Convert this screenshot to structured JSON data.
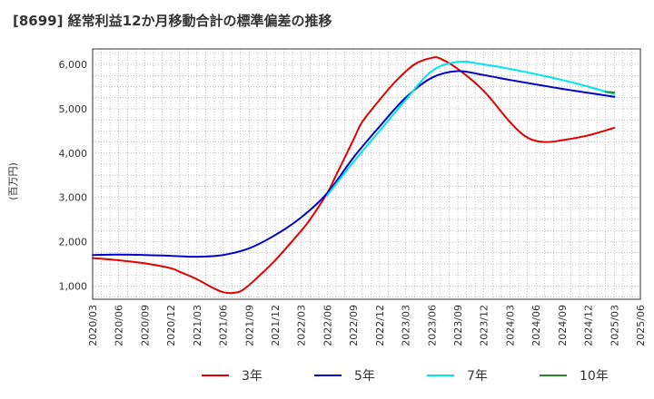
{
  "chart_data": {
    "type": "line",
    "title": "[8699]  経常利益12か月移動合計の標準偏差の推移",
    "ylabel": "(百万円)",
    "ylim": [
      700,
      6350
    ],
    "yticks": [
      1000,
      2000,
      3000,
      4000,
      5000,
      6000
    ],
    "ytick_labels": [
      "1,000",
      "2,000",
      "3,000",
      "4,000",
      "5,000",
      "6,000"
    ],
    "x_start": "2020/03",
    "x_end": "2025/06",
    "x_labels": [
      "2020/03",
      "2020/06",
      "2020/09",
      "2020/12",
      "2021/03",
      "2021/06",
      "2021/09",
      "2021/12",
      "2022/03",
      "2022/06",
      "2022/09",
      "2022/12",
      "2023/03",
      "2023/06",
      "2023/09",
      "2023/12",
      "2024/03",
      "2024/06",
      "2024/09",
      "2024/12",
      "2025/03",
      "2025/06"
    ],
    "grid": true,
    "legend_position": "bottom",
    "series": [
      {
        "name": "3年",
        "color": "#e00000",
        "points": [
          [
            "2020/03",
            1630
          ],
          [
            "2020/06",
            1580
          ],
          [
            "2020/09",
            1510
          ],
          [
            "2020/12",
            1400
          ],
          [
            "2021/01",
            1320
          ],
          [
            "2021/03",
            1150
          ],
          [
            "2021/05",
            940
          ],
          [
            "2021/06",
            860
          ],
          [
            "2021/07",
            840
          ],
          [
            "2021/08",
            880
          ],
          [
            "2021/09",
            1020
          ],
          [
            "2021/10",
            1200
          ],
          [
            "2021/12",
            1580
          ],
          [
            "2022/03",
            2250
          ],
          [
            "2022/04",
            2500
          ],
          [
            "2022/06",
            3100
          ],
          [
            "2022/07",
            3500
          ],
          [
            "2022/09",
            4300
          ],
          [
            "2022/10",
            4700
          ],
          [
            "2022/12",
            5200
          ],
          [
            "2023/02",
            5650
          ],
          [
            "2023/04",
            6000
          ],
          [
            "2023/06",
            6150
          ],
          [
            "2023/07",
            6130
          ],
          [
            "2023/09",
            5900
          ],
          [
            "2023/12",
            5400
          ],
          [
            "2024/03",
            4700
          ],
          [
            "2024/05",
            4350
          ],
          [
            "2024/07",
            4250
          ],
          [
            "2024/09",
            4290
          ],
          [
            "2024/12",
            4400
          ],
          [
            "2025/03",
            4570
          ]
        ]
      },
      {
        "name": "5年",
        "color": "#0000cc",
        "points": [
          [
            "2020/03",
            1700
          ],
          [
            "2020/06",
            1710
          ],
          [
            "2020/09",
            1700
          ],
          [
            "2020/12",
            1680
          ],
          [
            "2021/03",
            1660
          ],
          [
            "2021/06",
            1700
          ],
          [
            "2021/09",
            1850
          ],
          [
            "2021/12",
            2150
          ],
          [
            "2022/03",
            2550
          ],
          [
            "2022/06",
            3100
          ],
          [
            "2022/09",
            3900
          ],
          [
            "2022/12",
            4600
          ],
          [
            "2023/03",
            5250
          ],
          [
            "2023/06",
            5700
          ],
          [
            "2023/09",
            5850
          ],
          [
            "2023/12",
            5760
          ],
          [
            "2024/03",
            5650
          ],
          [
            "2024/06",
            5550
          ],
          [
            "2024/09",
            5450
          ],
          [
            "2024/12",
            5360
          ],
          [
            "2025/03",
            5270
          ]
        ]
      },
      {
        "name": "7年",
        "color": "#00e5ee",
        "points": [
          [
            "2022/06",
            3050
          ],
          [
            "2022/09",
            3800
          ],
          [
            "2022/12",
            4500
          ],
          [
            "2023/03",
            5200
          ],
          [
            "2023/06",
            5850
          ],
          [
            "2023/09",
            6060
          ],
          [
            "2023/12",
            6000
          ],
          [
            "2024/03",
            5900
          ],
          [
            "2024/06",
            5780
          ],
          [
            "2024/09",
            5650
          ],
          [
            "2024/12",
            5500
          ],
          [
            "2025/03",
            5330
          ]
        ]
      },
      {
        "name": "10年",
        "color": "#228b22",
        "points": [
          [
            "2025/02",
            5380
          ],
          [
            "2025/03",
            5370
          ]
        ]
      }
    ]
  }
}
